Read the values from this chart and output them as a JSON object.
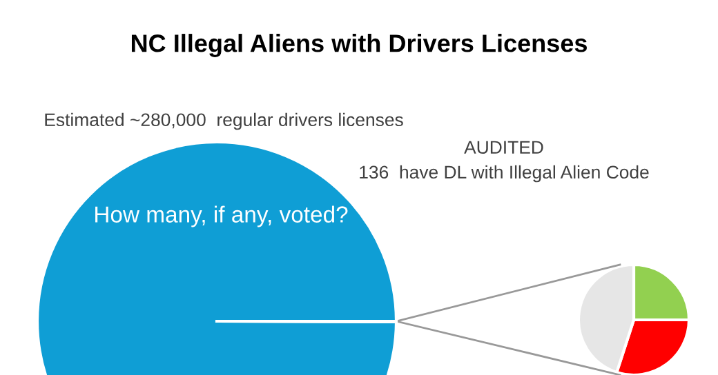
{
  "chart_data": [
    {
      "type": "pie",
      "title": "NC Illegal Aliens with Drivers Licenses",
      "categories": [
        null,
        null
      ],
      "values": [
        99.95,
        0.05
      ],
      "colors": [
        "#0f9ed5",
        "#0f9ed5"
      ],
      "annotations": [
        "Estimated ~280,000  regular drivers licenses",
        "How many, if any, voted?"
      ]
    },
    {
      "type": "pie",
      "categories": [
        null,
        null,
        null
      ],
      "values": [
        25,
        30,
        45
      ],
      "colors": [
        "#92d050",
        "#ff0000",
        "#e6e6e6"
      ],
      "annotations": [
        "AUDITED\n136  have DL with Illegal Alien Code"
      ]
    }
  ]
}
